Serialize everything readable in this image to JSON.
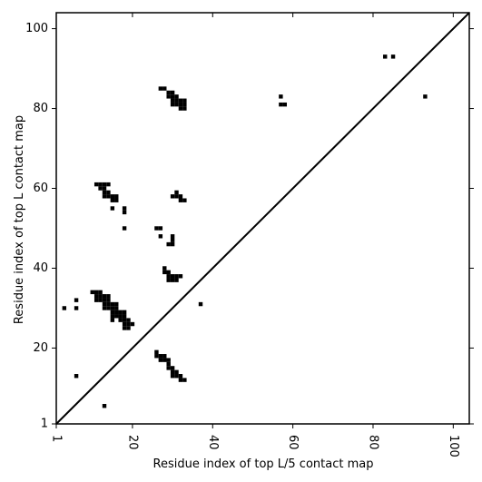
{
  "chart_data": {
    "type": "scatter",
    "title": "",
    "xlabel": "Residue index of top L/5 contact map",
    "ylabel": "Residue index of top L contact map",
    "xlim": [
      1,
      104
    ],
    "ylim": [
      1,
      104
    ],
    "x_ticks": [
      1,
      20,
      40,
      60,
      80,
      100
    ],
    "y_ticks": [
      1,
      20,
      40,
      60,
      80,
      100
    ],
    "x_tick_labels": [
      "1",
      "20",
      "40",
      "60",
      "80",
      "100"
    ],
    "y_tick_labels": [
      "1",
      "20",
      "40",
      "60",
      "80",
      "100"
    ],
    "grid": false,
    "legend": "none",
    "marker": "square",
    "marker_color": "#000000",
    "diagonal_line": true,
    "points": [
      [
        27,
        85
      ],
      [
        28,
        85
      ],
      [
        29,
        84
      ],
      [
        30,
        84
      ],
      [
        29,
        83
      ],
      [
        30,
        83
      ],
      [
        31,
        83
      ],
      [
        30,
        82
      ],
      [
        31,
        82
      ],
      [
        32,
        82
      ],
      [
        33,
        82
      ],
      [
        30,
        81
      ],
      [
        31,
        81
      ],
      [
        32,
        81
      ],
      [
        33,
        81
      ],
      [
        32,
        80
      ],
      [
        33,
        80
      ],
      [
        57,
        83
      ],
      [
        57,
        81
      ],
      [
        58,
        81
      ],
      [
        83,
        93
      ],
      [
        85,
        93
      ],
      [
        93,
        83
      ],
      [
        11,
        61
      ],
      [
        12,
        61
      ],
      [
        13,
        61
      ],
      [
        14,
        61
      ],
      [
        12,
        60
      ],
      [
        13,
        60
      ],
      [
        13,
        59
      ],
      [
        14,
        59
      ],
      [
        13,
        58
      ],
      [
        14,
        58
      ],
      [
        15,
        58
      ],
      [
        16,
        58
      ],
      [
        15,
        57
      ],
      [
        16,
        57
      ],
      [
        15,
        55
      ],
      [
        18,
        55
      ],
      [
        18,
        54
      ],
      [
        31,
        59
      ],
      [
        30,
        58
      ],
      [
        31,
        58
      ],
      [
        32,
        58
      ],
      [
        32,
        57
      ],
      [
        33,
        57
      ],
      [
        18,
        50
      ],
      [
        26,
        50
      ],
      [
        27,
        50
      ],
      [
        27,
        48
      ],
      [
        30,
        48
      ],
      [
        30,
        47
      ],
      [
        29,
        46
      ],
      [
        30,
        46
      ],
      [
        28,
        40
      ],
      [
        28,
        39
      ],
      [
        29,
        39
      ],
      [
        29,
        38
      ],
      [
        30,
        38
      ],
      [
        31,
        38
      ],
      [
        32,
        38
      ],
      [
        29,
        37
      ],
      [
        30,
        37
      ],
      [
        31,
        37
      ],
      [
        37,
        31
      ],
      [
        10,
        34
      ],
      [
        11,
        34
      ],
      [
        12,
        34
      ],
      [
        11,
        33
      ],
      [
        12,
        33
      ],
      [
        13,
        33
      ],
      [
        14,
        33
      ],
      [
        6,
        32
      ],
      [
        11,
        32
      ],
      [
        12,
        32
      ],
      [
        13,
        32
      ],
      [
        14,
        32
      ],
      [
        13,
        31
      ],
      [
        14,
        31
      ],
      [
        15,
        31
      ],
      [
        16,
        31
      ],
      [
        3,
        30
      ],
      [
        6,
        30
      ],
      [
        13,
        30
      ],
      [
        14,
        30
      ],
      [
        15,
        30
      ],
      [
        16,
        30
      ],
      [
        15,
        29
      ],
      [
        16,
        29
      ],
      [
        17,
        29
      ],
      [
        18,
        29
      ],
      [
        15,
        28
      ],
      [
        16,
        28
      ],
      [
        17,
        28
      ],
      [
        18,
        28
      ],
      [
        15,
        27
      ],
      [
        17,
        27
      ],
      [
        18,
        27
      ],
      [
        19,
        27
      ],
      [
        18,
        26
      ],
      [
        19,
        26
      ],
      [
        20,
        26
      ],
      [
        18,
        25
      ],
      [
        19,
        25
      ],
      [
        26,
        19
      ],
      [
        26,
        18
      ],
      [
        27,
        18
      ],
      [
        28,
        18
      ],
      [
        27,
        17
      ],
      [
        28,
        17
      ],
      [
        29,
        17
      ],
      [
        29,
        16
      ],
      [
        29,
        15
      ],
      [
        30,
        15
      ],
      [
        30,
        14
      ],
      [
        31,
        14
      ],
      [
        30,
        13
      ],
      [
        31,
        13
      ],
      [
        32,
        13
      ],
      [
        32,
        12
      ],
      [
        33,
        12
      ],
      [
        6,
        13
      ],
      [
        13,
        5.5
      ]
    ]
  }
}
